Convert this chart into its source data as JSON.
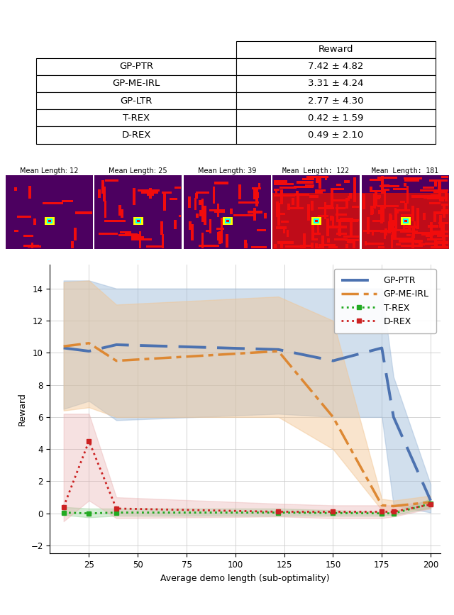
{
  "table": {
    "methods": [
      "GP-PTR",
      "GP-ME-IRL",
      "GP-LTR",
      "T-REX",
      "D-REX"
    ],
    "rewards": [
      "7.42 ± 4.82",
      "3.31 ± 4.24",
      "2.77 ± 4.30",
      "0.42 ± 1.59",
      "0.49 ± 2.10"
    ]
  },
  "maze_labels": [
    "Mean Length: 12",
    "Mean Length: 25",
    "Mean Length: 39",
    "Mean Length: 122",
    "Mean Length: 181"
  ],
  "plot": {
    "x": [
      12,
      25,
      39,
      122,
      150,
      175,
      181,
      200
    ],
    "gp_ptr_mean": [
      10.3,
      10.1,
      10.5,
      10.2,
      9.5,
      10.3,
      6.0,
      0.8
    ],
    "gp_ptr_upper": [
      14.5,
      14.5,
      14.0,
      14.0,
      14.0,
      14.0,
      8.5,
      1.8
    ],
    "gp_ptr_lower": [
      6.5,
      7.0,
      5.8,
      6.2,
      6.0,
      6.0,
      0.5,
      0.05
    ],
    "gp_meirl_mean": [
      10.4,
      10.6,
      9.5,
      10.1,
      6.0,
      0.5,
      0.45,
      0.7
    ],
    "gp_meirl_upper": [
      14.4,
      14.5,
      13.0,
      13.5,
      12.0,
      0.9,
      0.8,
      1.1
    ],
    "gp_meirl_lower": [
      6.4,
      6.6,
      6.0,
      6.0,
      4.0,
      0.2,
      0.15,
      0.3
    ],
    "trex_mean": [
      0.05,
      0.0,
      0.05,
      0.05,
      0.02,
      0.0,
      0.0,
      0.6
    ],
    "trex_upper": [
      0.4,
      0.3,
      0.3,
      0.3,
      0.2,
      0.1,
      0.1,
      0.9
    ],
    "trex_lower": [
      -0.1,
      -0.25,
      -0.15,
      -0.15,
      -0.15,
      -0.15,
      -0.1,
      0.35
    ],
    "drex_mean": [
      0.4,
      4.5,
      0.3,
      0.1,
      0.1,
      0.1,
      0.1,
      0.55
    ],
    "drex_upper": [
      6.2,
      6.2,
      1.0,
      0.6,
      0.5,
      0.5,
      0.5,
      0.75
    ],
    "drex_lower": [
      -0.5,
      0.8,
      -0.3,
      -0.2,
      -0.3,
      -0.3,
      -0.2,
      0.3
    ],
    "ylim": [
      -2.5,
      15.5
    ],
    "xlim": [
      5,
      205
    ]
  },
  "colors": {
    "gp_ptr": "#4C72B0",
    "gp_meirl": "#DD8833",
    "trex": "#22AA22",
    "drex": "#CC2222",
    "gp_ptr_fill": "#9BB8D8",
    "gp_meirl_fill": "#F2C490",
    "trex_fill": "#88CC88",
    "drex_fill": "#E8AAAA"
  }
}
